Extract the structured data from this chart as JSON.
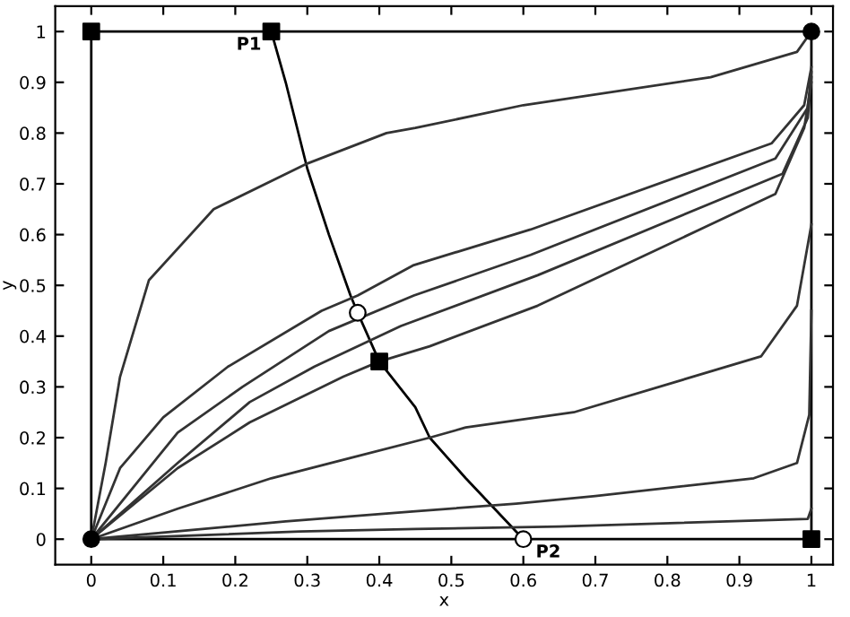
{
  "chart_data": {
    "type": "line",
    "xlabel": "x",
    "ylabel": "y",
    "xlim": [
      -0.05,
      1.03
    ],
    "ylim": [
      -0.05,
      1.05
    ],
    "xticks": [
      0,
      0.1,
      0.2,
      0.3,
      0.4,
      0.5,
      0.6,
      0.7,
      0.8,
      0.9,
      1
    ],
    "yticks": [
      0,
      0.1,
      0.2,
      0.3,
      0.4,
      0.5,
      0.6,
      0.7,
      0.8,
      0.9,
      1
    ],
    "grid": false,
    "legend": false,
    "marker": "none",
    "line_style": "solid",
    "series": [
      {
        "color": "#000000",
        "x": [
          0.25,
          0.27,
          0.3,
          0.33,
          0.36,
          0.37,
          0.4,
          0.45,
          0.47,
          0.52,
          0.56,
          0.6
        ],
        "values": [
          1,
          0.9,
          0.73,
          0.6,
          0.48,
          0.446,
          0.35,
          0.26,
          0.2,
          0.12,
          0.06,
          0
        ]
      },
      {
        "color": "#333333",
        "x": [
          0,
          0.02,
          0.04,
          0.08,
          0.17,
          0.3,
          0.41,
          0.45,
          0.6,
          0.86,
          0.98,
          1
        ],
        "values": [
          0,
          0.15,
          0.32,
          0.51,
          0.65,
          0.74,
          0.8,
          0.81,
          0.855,
          0.91,
          0.96,
          1
        ]
      },
      {
        "color": "#333333",
        "x": [
          0,
          0.04,
          0.1,
          0.19,
          0.32,
          0.37,
          0.448,
          0.61,
          0.945,
          0.99,
          1
        ],
        "values": [
          0,
          0.14,
          0.24,
          0.34,
          0.45,
          0.48,
          0.54,
          0.61,
          0.78,
          0.855,
          0.93
        ]
      },
      {
        "color": "#333333",
        "x": [
          0,
          0.12,
          0.21,
          0.33,
          0.448,
          0.61,
          0.95,
          0.995,
          1
        ],
        "values": [
          0,
          0.21,
          0.3,
          0.41,
          0.48,
          0.56,
          0.75,
          0.85,
          0.92
        ]
      },
      {
        "color": "#333333",
        "x": [
          0,
          0.12,
          0.22,
          0.31,
          0.43,
          0.62,
          0.96,
          0.995,
          1
        ],
        "values": [
          0,
          0.15,
          0.27,
          0.34,
          0.42,
          0.52,
          0.72,
          0.83,
          0.91
        ]
      },
      {
        "color": "#333333",
        "x": [
          0,
          0.12,
          0.22,
          0.35,
          0.4,
          0.47,
          0.62,
          0.95,
          0.99,
          1
        ],
        "values": [
          0,
          0.14,
          0.23,
          0.32,
          0.35,
          0.38,
          0.46,
          0.68,
          0.81,
          0.9
        ]
      },
      {
        "color": "#333333",
        "x": [
          0,
          0.12,
          0.25,
          0.36,
          0.47,
          0.52,
          0.67,
          0.93,
          0.98,
          1
        ],
        "values": [
          0,
          0.06,
          0.12,
          0.16,
          0.2,
          0.22,
          0.25,
          0.36,
          0.46,
          0.62
        ]
      },
      {
        "color": "#333333",
        "x": [
          0,
          0.27,
          0.45,
          0.59,
          0.7,
          0.92,
          0.98,
          0.997,
          1
        ],
        "values": [
          0,
          0.035,
          0.055,
          0.07,
          0.085,
          0.12,
          0.15,
          0.245,
          0.45
        ]
      },
      {
        "color": "#333333",
        "x": [
          0,
          0.29,
          0.45,
          0.65,
          0.995,
          1
        ],
        "values": [
          0,
          0.015,
          0.02,
          0.025,
          0.04,
          0.06
        ]
      },
      {
        "type": "scatter",
        "marker": "square",
        "color": "#000000",
        "x": [
          0,
          0.25,
          1,
          0.4
        ],
        "values": [
          1,
          1,
          0,
          0.35
        ]
      },
      {
        "type": "scatter",
        "marker": "circle",
        "color": "#000000",
        "x": [
          0,
          1
        ],
        "values": [
          0,
          1
        ]
      },
      {
        "type": "scatter",
        "marker": "circle",
        "color": "#ffffff",
        "x": [
          0.37,
          0.6
        ],
        "values": [
          0.446,
          0
        ]
      }
    ],
    "annotations": [
      {
        "text": "P1",
        "x": 0.25,
        "y": 1
      },
      {
        "text": "P2",
        "x": 0.6,
        "y": 0
      }
    ]
  }
}
